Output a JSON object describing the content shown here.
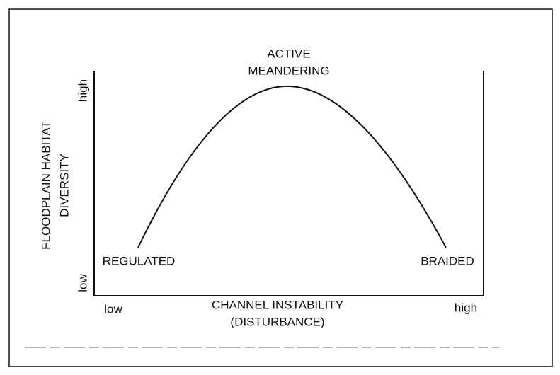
{
  "peak_label": [
    "ACTIVE",
    "MEANDERING"
  ],
  "y_axis": {
    "label": [
      "FLOODPLAIN HABITAT",
      "DIVERSITY"
    ],
    "high": "high",
    "low": "low"
  },
  "x_axis": {
    "label": [
      "CHANNEL INSTABILITY",
      "(DISTURBANCE)"
    ],
    "low": "low",
    "high": "high"
  },
  "curve_labels": {
    "left": "REGULATED",
    "right": "BRAIDED"
  }
}
